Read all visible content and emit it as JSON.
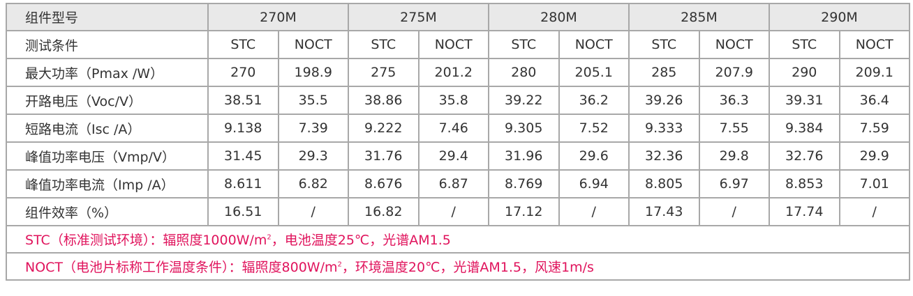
{
  "header": {
    "label": "组件型号",
    "models": [
      "270M",
      "275M",
      "280M",
      "285M",
      "290M"
    ]
  },
  "conditions": {
    "label": "测试条件",
    "stc": "STC",
    "noct": "NOCT"
  },
  "rows": [
    {
      "label": "最大功率（Pmax /W）",
      "values": [
        "270",
        "198.9",
        "275",
        "201.2",
        "280",
        "205.1",
        "285",
        "207.9",
        "290",
        "209.1"
      ]
    },
    {
      "label": "开路电压（Voc/V）",
      "values": [
        "38.51",
        "35.5",
        "38.86",
        "35.8",
        "39.22",
        "36.2",
        "39.26",
        "36.3",
        "39.31",
        "36.4"
      ]
    },
    {
      "label": "短路电流（Isc /A）",
      "values": [
        "9.138",
        "7.39",
        "9.222",
        "7.46",
        "9.305",
        "7.52",
        "9.333",
        "7.55",
        "9.384",
        "7.59"
      ]
    },
    {
      "label": "峰值功率电压（Vmp/V）",
      "values": [
        "31.45",
        "29.3",
        "31.76",
        "29.4",
        "31.96",
        "29.6",
        "32.36",
        "29.8",
        "32.76",
        "29.9"
      ]
    },
    {
      "label": "峰值功率电流（Imp /A）",
      "values": [
        "8.611",
        "6.82",
        "8.676",
        "6.87",
        "8.769",
        "6.94",
        "8.805",
        "6.97",
        "8.853",
        "7.01"
      ]
    },
    {
      "label": "组件效率（%）",
      "values": [
        "16.51",
        "/",
        "16.82",
        "/",
        "17.12",
        "/",
        "17.43",
        "/",
        "17.74",
        "/"
      ]
    }
  ],
  "notes": {
    "stc_before": "STC（标准测试环境）：辐照度1000W/m",
    "stc_sup": "2",
    "stc_after": "，电池温度25℃，光谱AM1.5",
    "noct_before": "NOCT（电池片标称工作温度条件）：辐照度800W/m",
    "noct_sup": "2",
    "noct_after": "，环境温度20℃，光谱AM1.5，风速1m/s",
    "color": "#e0135c"
  }
}
